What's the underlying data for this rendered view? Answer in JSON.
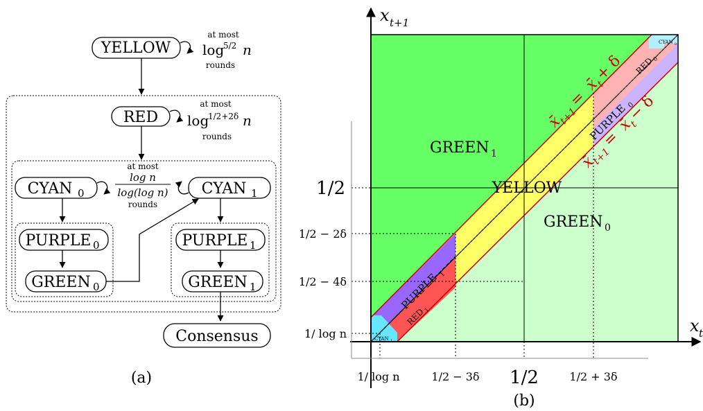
{
  "panel_a": {
    "caption": "(a)",
    "yellow": {
      "label": "YELLOW",
      "loop_line1": "at most",
      "loop_line2": "log",
      "loop_sup": "5/2",
      "loop_var": "n",
      "loop_line3": "rounds"
    },
    "red": {
      "label": "RED",
      "loop_line1": "at most",
      "loop_line2": "log",
      "loop_sup": "1/2+2δ",
      "loop_var": "n",
      "loop_line3": "rounds"
    },
    "cyan0": {
      "label": "CYAN",
      "sub": "0"
    },
    "cyan1": {
      "label": "CYAN",
      "sub": "1"
    },
    "cyan_loop": {
      "line1": "at most",
      "num": "log n",
      "den": "log(log n)",
      "line3": "rounds"
    },
    "purple0": {
      "label": "PURPLE",
      "sub": "0"
    },
    "purple1": {
      "label": "PURPLE",
      "sub": "1"
    },
    "green0": {
      "label": "GREEN",
      "sub": "0"
    },
    "green1": {
      "label": "GREEN",
      "sub": "1"
    },
    "consensus": {
      "label": "Consensus"
    }
  },
  "panel_b": {
    "caption": "(b)",
    "y_axis_label": "x",
    "y_axis_sub": "t+1",
    "x_axis_label": "x",
    "x_axis_sub": "t",
    "regions": {
      "green1": {
        "label": "GREEN",
        "sub": "1",
        "color": "#66ff66"
      },
      "green0": {
        "label": "GREEN",
        "sub": "0",
        "color": "#ccffcc"
      },
      "yellow": {
        "label": "YELLOW",
        "color": "#ffff66"
      },
      "red0": {
        "label": "RED",
        "sub": "0",
        "color": "#ffb3b3"
      },
      "red1": {
        "label": "RED",
        "sub": "1",
        "color": "#ff5555"
      },
      "purple0": {
        "label": "PURPLE",
        "sub": "0",
        "color": "#ccb3ff"
      },
      "purple1": {
        "label": "PURPLE",
        "sub": "1",
        "color": "#9966ff"
      },
      "cyan0": {
        "label": "CYAN",
        "sub": "0",
        "color": "#b3f0ff"
      },
      "cyan1": {
        "label": "CYAN",
        "sub": "1",
        "color": "#66e6ff"
      }
    },
    "line_upper": "x̄t+1 = x̄t + δ",
    "line_lower": "x̄t+1 = x̄t − δ",
    "upper_lhs": "x̄",
    "upper_lhs_sub": "t+1",
    "upper_eq": " = ",
    "upper_rhs": "x̄",
    "upper_rhs_sub": "t",
    "upper_tail": " + δ",
    "lower_lhs": "x̄",
    "lower_lhs_sub": "t+1",
    "lower_eq": " = ",
    "lower_rhs": "x̄",
    "lower_rhs_sub": "t",
    "lower_tail": " − δ",
    "y_ticks": [
      "1/2",
      "1/2 − 2δ",
      "1/2 − 4δ",
      "1/ log n"
    ],
    "x_ticks": [
      "1/ log n",
      "1/2 − 3δ",
      "1/2",
      "1/2 + 3δ"
    ],
    "accent_line": "#cc0000"
  }
}
